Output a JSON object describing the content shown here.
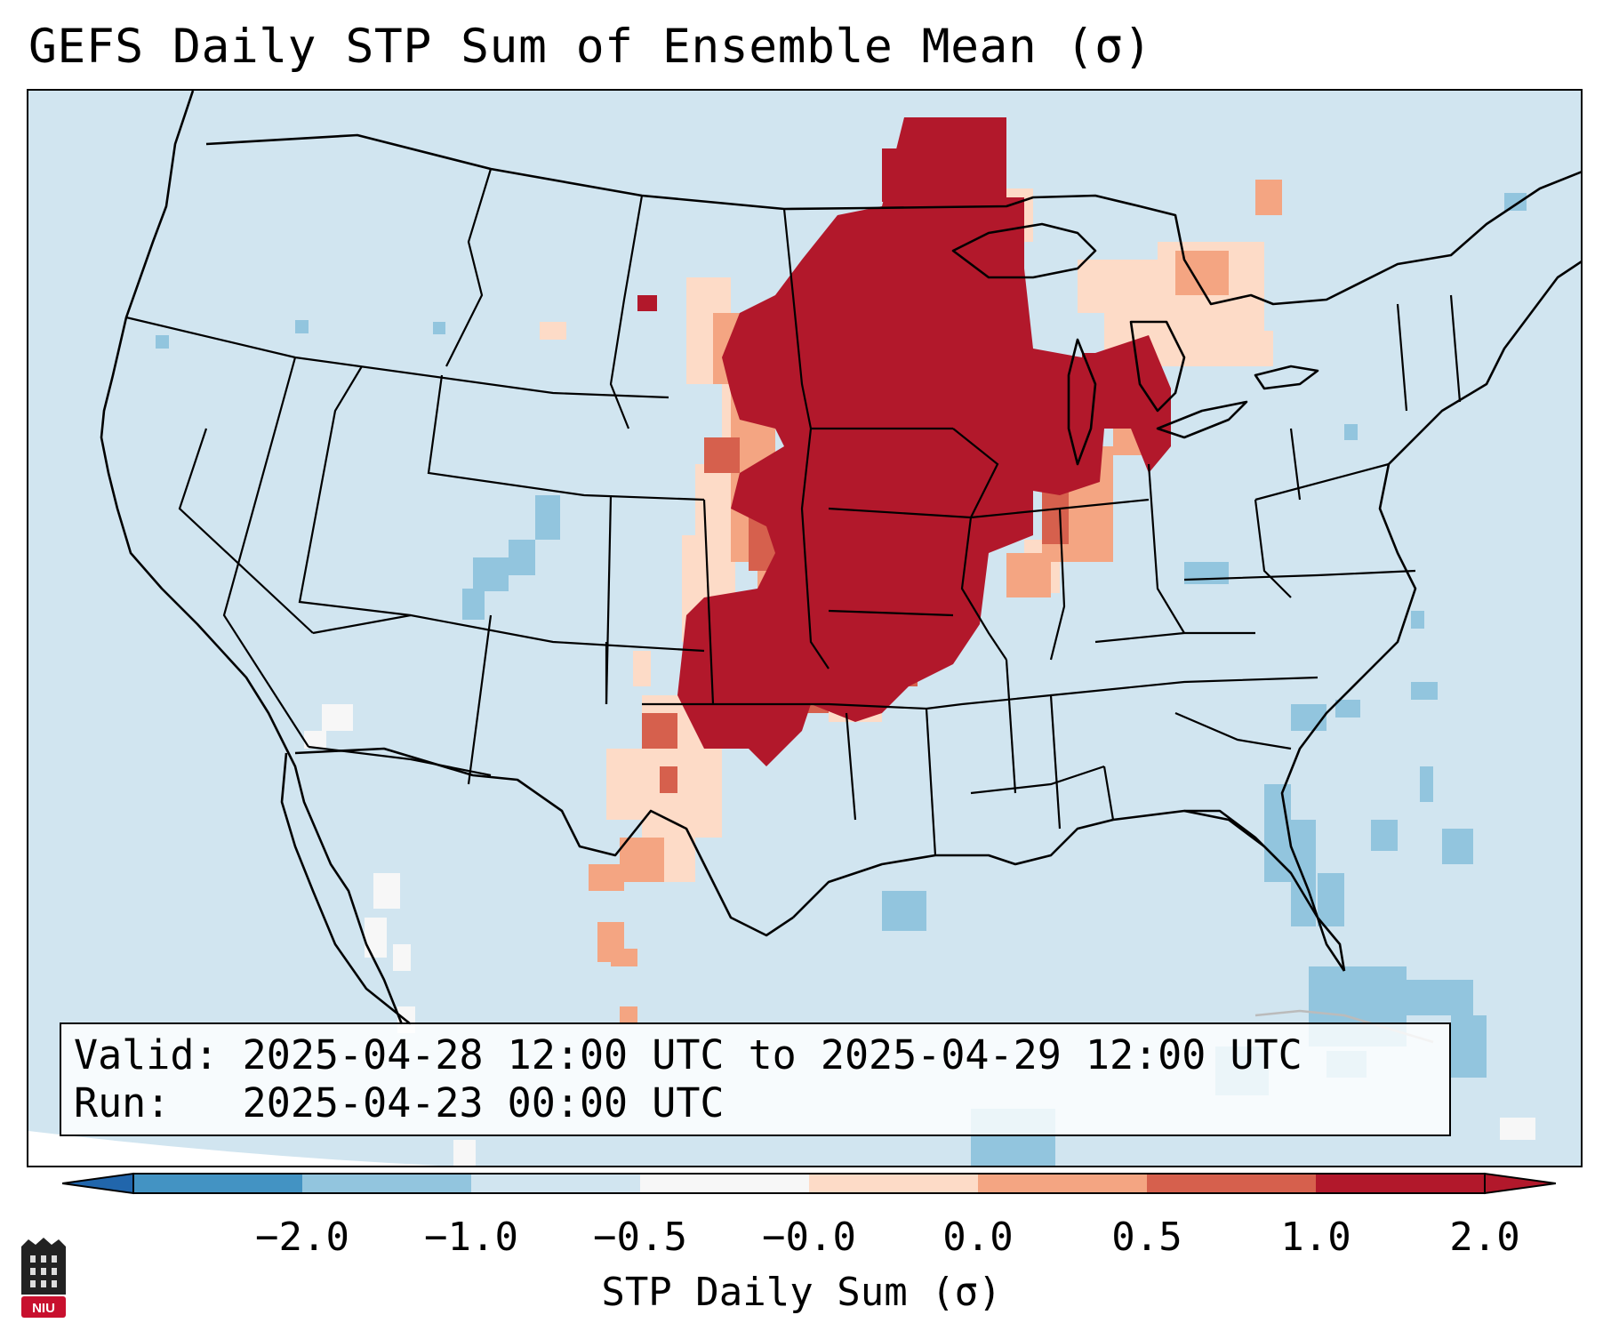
{
  "title": "GEFS Daily STP Sum of Ensemble Mean (σ)",
  "info": {
    "valid_label": "Valid:",
    "valid_value": "2025-04-28 12:00 UTC to 2025-04-29 12:00 UTC",
    "run_label": "Run:",
    "run_value": "2025-04-23 00:00 UTC"
  },
  "colorbar": {
    "label": "STP Daily Sum (σ)",
    "ticks": [
      "−2.0",
      "−1.0",
      "−0.5",
      "−0.0",
      "0.0",
      "0.5",
      "1.0",
      "2.0"
    ],
    "colors": [
      "#4393c3",
      "#92c5de",
      "#d1e5f0",
      "#f7f7f7",
      "#fddbc7",
      "#f4a582",
      "#d6604d",
      "#b2182b"
    ],
    "extend_low_color": "#2166ac",
    "extend_high_color": "#b2182b"
  },
  "map": {
    "background_color": "#d1e5f0",
    "region": "Contiguous United States",
    "max_region": "Upper Midwest / Central Plains"
  },
  "logo": {
    "text": "NIU",
    "color": "#c8102e"
  }
}
